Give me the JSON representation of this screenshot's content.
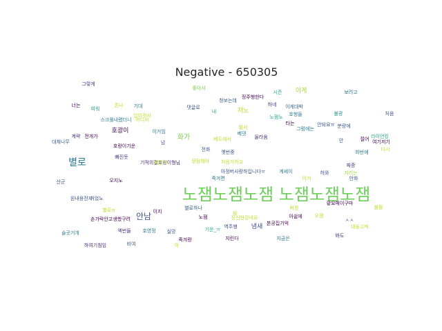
{
  "chart_data": {
    "type": "wordcloud",
    "title": "Negative - 650305",
    "background": "#ffffff",
    "palette": "viridis",
    "words": [
      {
        "text": "노잼노잼노잼 노잼노잼노잼",
        "color": "#6cce59"
      },
      {
        "text": "별로",
        "color": "#2a788e"
      },
      {
        "text": "안남",
        "color": "#3b528b"
      },
      {
        "text": "화가",
        "color": "#7ad151"
      },
      {
        "text": "호광이",
        "color": "#440154"
      },
      {
        "text": "그렇게",
        "color": "#46327e"
      },
      {
        "text": "좋아서",
        "color": "#7ad151"
      },
      {
        "text": "청보는데",
        "color": "#365c8d"
      },
      {
        "text": "정주행한다",
        "color": "#440154"
      },
      {
        "text": "시즌",
        "color": "#22a884"
      },
      {
        "text": "이게",
        "color": "#a0da39"
      },
      {
        "text": "보려고",
        "color": "#2a788e"
      },
      {
        "text": "너는",
        "color": "#440154"
      },
      {
        "text": "여워",
        "color": "#1f988b"
      },
      {
        "text": "존나",
        "color": "#bddf26"
      },
      {
        "text": "기대",
        "color": "#2a788e"
      },
      {
        "text": "입이정서",
        "color": "#bddf26"
      },
      {
        "text": "댓글로",
        "color": "#3b528b"
      },
      {
        "text": "내",
        "color": "#22a884"
      },
      {
        "text": "저노",
        "color": "#bddf26"
      },
      {
        "text": "하네",
        "color": "#46327e"
      },
      {
        "text": "이게대박",
        "color": "#365c8d"
      },
      {
        "text": "호행들",
        "color": "#2a788e"
      },
      {
        "text": "불광",
        "color": "#21918c"
      },
      {
        "text": "처음",
        "color": "#3b528b"
      },
      {
        "text": "스크롤내렸더니",
        "color": "#2a788e"
      },
      {
        "text": "어디서",
        "color": "#bddf26"
      },
      {
        "text": "벌서",
        "color": "#bddf26"
      },
      {
        "text": "노잼노",
        "color": "#22a884"
      },
      {
        "text": "타는",
        "color": "#440154"
      },
      {
        "text": "안되요ㅠ",
        "color": "#3b528b"
      },
      {
        "text": "분량에",
        "color": "#365c8d"
      },
      {
        "text": "계략",
        "color": "#46327e"
      },
      {
        "text": "전개가",
        "color": "#440154"
      },
      {
        "text": "이거임",
        "color": "#2a788e"
      },
      {
        "text": "베댓",
        "color": "#2a788e"
      },
      {
        "text": "올라옴",
        "color": "#46327e"
      },
      {
        "text": "그럼에는",
        "color": "#2a788e"
      },
      {
        "text": "대체나무",
        "color": "#365c8d"
      },
      {
        "text": "넘",
        "color": "#3b528b"
      },
      {
        "text": "베도에서",
        "color": "#bddf26"
      },
      {
        "text": "안",
        "color": "#365c8d"
      },
      {
        "text": "절어",
        "color": "#440154"
      },
      {
        "text": "라이언킹",
        "color": "#22a884"
      },
      {
        "text": "여기저기",
        "color": "#440154"
      },
      {
        "text": "전화",
        "color": "#3b528b"
      },
      {
        "text": "옛번중",
        "color": "#3b528b"
      },
      {
        "text": "화반에",
        "color": "#2a788e"
      },
      {
        "text": "다시",
        "color": "#bddf26"
      },
      {
        "text": "호랑이기운",
        "color": "#440154"
      },
      {
        "text": "빠진듯",
        "color": "#46327e"
      },
      {
        "text": "기적의결호랑이형님",
        "color": "#46327e"
      },
      {
        "text": "정점해야",
        "color": "#bddf26"
      },
      {
        "text": "처음가하고",
        "color": "#bddf26"
      },
      {
        "text": "재밌어",
        "color": "#bddf26"
      },
      {
        "text": "짜증",
        "color": "#46327e"
      },
      {
        "text": "아정버사랑하입니다ㅠ",
        "color": "#3b528b"
      },
      {
        "text": "계세이",
        "color": "#2a788e"
      },
      {
        "text": "하와",
        "color": "#3b528b"
      },
      {
        "text": "지리는",
        "color": "#a0da39"
      },
      {
        "text": "오지노",
        "color": "#440154"
      },
      {
        "text": "즉겨면",
        "color": "#2a788e"
      },
      {
        "text": "이거",
        "color": "#bddf26"
      },
      {
        "text": "안화",
        "color": "#3b528b"
      },
      {
        "text": "산군",
        "color": "#3b528b"
      },
      {
        "text": "원내용전지",
        "color": "#3b528b"
      },
      {
        "text": "커었노",
        "color": "#3b528b"
      },
      {
        "text": "황요매이구마",
        "color": "#440154"
      },
      {
        "text": "불활",
        "color": "#bddf26"
      },
      {
        "text": "별로ㅠ",
        "color": "#bddf26"
      },
      {
        "text": "별로하나",
        "color": "#365c8d"
      },
      {
        "text": "버정",
        "color": "#bddf26"
      },
      {
        "text": "손가락안고생했구려",
        "color": "#440154"
      },
      {
        "text": "이지",
        "color": "#440154"
      },
      {
        "text": "노잼",
        "color": "#440154"
      },
      {
        "text": "재",
        "color": "#bddf26"
      },
      {
        "text": "정신현강네요",
        "color": "#bddf26"
      },
      {
        "text": "아쉽에",
        "color": "#440154"
      },
      {
        "text": "오잼",
        "color": "#bddf26"
      },
      {
        "text": "ㅅㅅ",
        "color": "#3b528b"
      },
      {
        "text": "대놓고씩",
        "color": "#bddf26"
      },
      {
        "text": "엑번들",
        "color": "#46327e"
      },
      {
        "text": "호영정",
        "color": "#2a788e"
      },
      {
        "text": "실망",
        "color": "#3b528b"
      },
      {
        "text": "기운_ㅠ",
        "color": "#22a884"
      },
      {
        "text": "역주행",
        "color": "#3b528b"
      },
      {
        "text": "냄새",
        "color": "#3b528b"
      },
      {
        "text": "본공집기억",
        "color": "#440154"
      },
      {
        "text": "술곳거개",
        "color": "#2a788e"
      },
      {
        "text": "죽겨랑",
        "color": "#440154"
      },
      {
        "text": "지린다",
        "color": "#440154"
      },
      {
        "text": "지금은",
        "color": "#2a788e"
      },
      {
        "text": "봐도",
        "color": "#46327e"
      },
      {
        "text": "하여기침임",
        "color": "#46327e"
      },
      {
        "text": "비여",
        "color": "#3b528b"
      },
      {
        "text": "아",
        "color": "#bddf26"
      }
    ]
  }
}
